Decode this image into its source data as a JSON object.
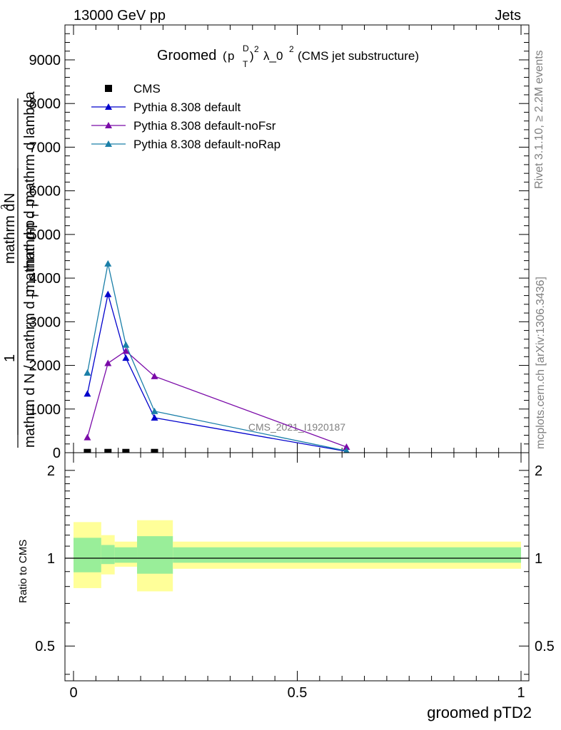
{
  "header": {
    "energy": "13000 GeV pp",
    "category": "Jets"
  },
  "title": {
    "main": "Groomed",
    "pt_symbol": "p",
    "pt_sup": "D",
    "pt_sub": "T",
    "pt_power": "2",
    "lambda": "λ_0",
    "lambda_power": "2",
    "suffix": "(CMS jet substructure)"
  },
  "side_labels": {
    "rivet": "Rivet 3.1.10, ≥ 2.2M events",
    "mcplots": "mcplots.cern.ch [arXiv:1306.3436]"
  },
  "watermark": "CMS_2021_I1920187",
  "ylabel_main": {
    "line1": "mathrm d",
    "line1_sup": "2",
    "line1_end": "N",
    "line2": "mathrm d p",
    "line2_sub": "T",
    "line2_mid": " mathrm d lambda",
    "line3": "1",
    "line4": "mathrm d N / mathrm d p",
    "line4_sub": "T",
    "line4_end": " mathrm d p",
    "line4_sub2": "T"
  },
  "xlabel": "groomed pTD2",
  "ylabel_ratio": "Ratio to CMS",
  "legend": [
    {
      "label": "CMS",
      "color": "#000000",
      "marker": "square"
    },
    {
      "label": "Pythia 8.308 default",
      "color": "#0000cc",
      "marker": "triangle"
    },
    {
      "label": "Pythia 8.308 default-noFsr",
      "color": "#7a0aa8",
      "marker": "triangle"
    },
    {
      "label": "Pythia 8.308 default-noRap",
      "color": "#1a7fa8",
      "marker": "triangle"
    }
  ],
  "main_axis": {
    "y_ticks": [
      0,
      1000,
      2000,
      3000,
      4000,
      5000,
      6000,
      7000,
      8000,
      9000
    ],
    "y_tick_labels": [
      "0",
      "1000",
      "2000",
      "3000",
      "4000",
      "5000",
      "6000",
      "7000",
      "8000",
      "9000"
    ]
  },
  "ratio_axis": {
    "y_ticks": [
      0.5,
      1,
      2
    ],
    "y_tick_labels": [
      "0.5",
      "1",
      "2"
    ]
  },
  "chart_data": {
    "type": "line",
    "title": "Groomed (p_T^D)^2 λ_0^2 (CMS jet substructure)",
    "xlabel": "groomed pTD2",
    "ylabel": "1/(mathrm d N / mathrm d p_T mathrm d p_T) mathrm d^2N/(mathrm d p_T mathrm d lambda)",
    "xlim": [
      0,
      1
    ],
    "ylim": [
      0,
      9800
    ],
    "x_ticks": [
      0,
      0.5,
      1
    ],
    "x_tick_labels": [
      "0",
      "0.5",
      "1"
    ],
    "grid": false,
    "legend_position": "top-left",
    "series": [
      {
        "name": "CMS",
        "marker": "square",
        "color": "#000000",
        "x": [
          0.031,
          0.077,
          0.117,
          0.181
        ],
        "y": [
          5,
          5,
          5,
          5
        ]
      },
      {
        "name": "Pythia 8.308 default",
        "marker": "triangle",
        "color": "#0000cc",
        "x": [
          0.031,
          0.077,
          0.117,
          0.181,
          0.61
        ],
        "y": [
          1350,
          3630,
          2170,
          800,
          30
        ]
      },
      {
        "name": "Pythia 8.308 default-noFsr",
        "marker": "triangle",
        "color": "#7a0aa8",
        "x": [
          0.031,
          0.077,
          0.117,
          0.181,
          0.61
        ],
        "y": [
          350,
          2050,
          2330,
          1750,
          130
        ]
      },
      {
        "name": "Pythia 8.308 default-noRap",
        "marker": "triangle",
        "color": "#1a7fa8",
        "x": [
          0.031,
          0.077,
          0.117,
          0.181,
          0.61
        ],
        "y": [
          1830,
          4330,
          2470,
          950,
          40
        ]
      }
    ],
    "ratio": {
      "ylabel": "Ratio to CMS",
      "ylim": [
        0.38,
        2.3
      ],
      "scale": "log",
      "bands": [
        {
          "x0": 0.0,
          "x1": 0.062,
          "stat_lo": 0.895,
          "stat_hi": 1.175,
          "tot_lo": 0.79,
          "tot_hi": 1.33
        },
        {
          "x0": 0.062,
          "x1": 0.092,
          "stat_lo": 0.955,
          "stat_hi": 1.11,
          "tot_lo": 0.88,
          "tot_hi": 1.2
        },
        {
          "x0": 0.092,
          "x1": 0.142,
          "stat_lo": 0.965,
          "stat_hi": 1.09,
          "tot_lo": 0.935,
          "tot_hi": 1.14
        },
        {
          "x0": 0.142,
          "x1": 0.222,
          "stat_lo": 0.885,
          "stat_hi": 1.19,
          "tot_lo": 0.77,
          "tot_hi": 1.35
        },
        {
          "x0": 0.222,
          "x1": 1.0,
          "stat_lo": 0.965,
          "stat_hi": 1.09,
          "tot_lo": 0.92,
          "tot_hi": 1.14
        }
      ],
      "band_colors": {
        "stat": "#99ee99",
        "total": "#ffff99"
      }
    }
  }
}
